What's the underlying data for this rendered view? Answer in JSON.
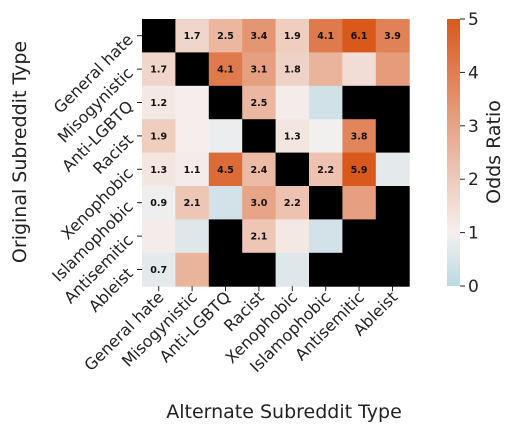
{
  "chart_data": {
    "type": "heatmap",
    "xlabel": "Alternate Subreddit Type",
    "ylabel": "Original Subreddit Type",
    "x_categories": [
      "General hate",
      "Misogynistic",
      "Anti-LGBTQ",
      "Racist",
      "Xenophobic",
      "Islamophobic",
      "Antisemitic",
      "Ableist"
    ],
    "y_categories": [
      "General hate",
      "Misogynistic",
      "Anti-LGBTQ",
      "Racist",
      "Xenophobic",
      "Islamophobic",
      "Antisemitic",
      "Ableist"
    ],
    "colorbar": {
      "label": "Odds Ratio",
      "range": [
        0,
        5
      ],
      "ticks": [
        0,
        1,
        2,
        3,
        4,
        5
      ],
      "colors": {
        "low": "#bcd9e2",
        "mid": "#f5f0f0",
        "high": "#d9581c"
      }
    },
    "missing_color": "#000000",
    "values": [
      [
        null,
        1.7,
        2.5,
        3.4,
        1.9,
        4.1,
        6.1,
        3.9
      ],
      [
        1.7,
        null,
        4.1,
        3.1,
        1.8,
        2.6,
        1.5,
        3.2
      ],
      [
        1.2,
        1.05,
        null,
        2.5,
        1.1,
        0.35,
        null,
        null
      ],
      [
        1.9,
        1.05,
        0.85,
        null,
        1.3,
        0.95,
        3.8,
        null
      ],
      [
        1.3,
        1.1,
        4.5,
        2.4,
        null,
        2.2,
        5.9,
        0.7
      ],
      [
        0.9,
        2.1,
        0.4,
        3.0,
        2.2,
        null,
        3.1,
        null
      ],
      [
        1.1,
        0.6,
        null,
        2.1,
        1.2,
        0.4,
        null,
        null
      ],
      [
        0.7,
        2.6,
        null,
        null,
        0.6,
        null,
        null,
        null
      ]
    ],
    "labels": [
      [
        null,
        "1.7",
        "2.5",
        "3.4",
        "1.9",
        "4.1",
        "6.1",
        "3.9"
      ],
      [
        "1.7",
        null,
        "4.1",
        "3.1",
        "1.8",
        null,
        null,
        null
      ],
      [
        "1.2",
        null,
        null,
        "2.5",
        null,
        null,
        null,
        null
      ],
      [
        "1.9",
        null,
        null,
        null,
        "1.3",
        null,
        "3.8",
        null
      ],
      [
        "1.3",
        "1.1",
        "4.5",
        "2.4",
        null,
        "2.2",
        "5.9",
        null
      ],
      [
        "0.9",
        "2.1",
        null,
        "3.0",
        "2.2",
        null,
        null,
        null
      ],
      [
        null,
        null,
        null,
        "2.1",
        null,
        null,
        null,
        null
      ],
      [
        "0.7",
        null,
        null,
        null,
        null,
        null,
        null,
        null
      ]
    ]
  }
}
